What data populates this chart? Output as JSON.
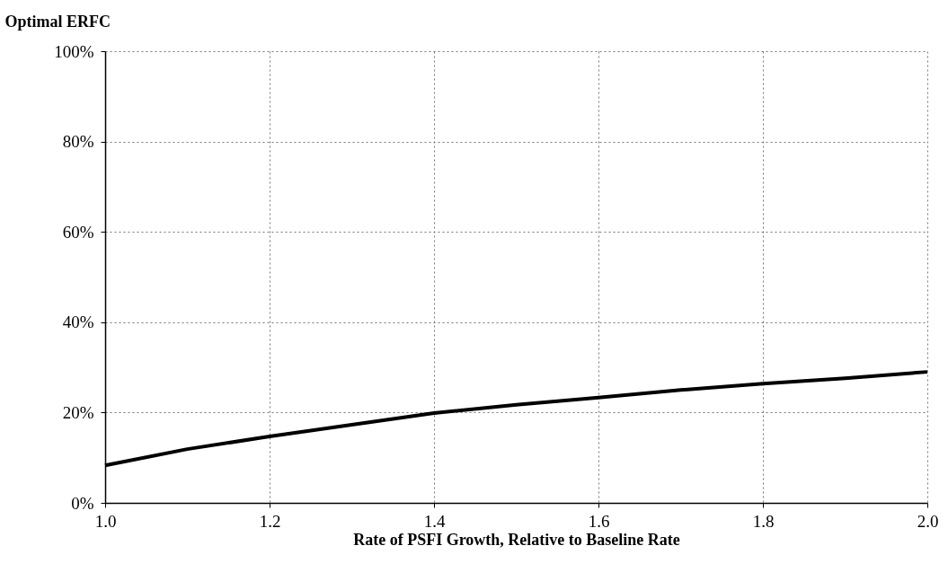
{
  "chart_data": {
    "type": "line",
    "xlabel": "Rate of PSFI Growth, Relative to Baseline Rate",
    "ylabel": "Optimal ERFC",
    "x": [
      1.0,
      1.1,
      1.2,
      1.3,
      1.4,
      1.5,
      1.6,
      1.7,
      1.8,
      1.9,
      2.0
    ],
    "series": [
      {
        "color": "#000000",
        "values": [
          8.3,
          11.9,
          14.7,
          17.3,
          19.9,
          21.7,
          23.3,
          25.0,
          26.4,
          27.6,
          29.0
        ]
      }
    ],
    "xlim": [
      1.0,
      2.0
    ],
    "xticks": [
      {
        "value": 1.0,
        "label": "1.0"
      },
      1.2,
      1.4,
      1.6,
      1.8,
      {
        "value": 2.0,
        "label": "2.0"
      }
    ],
    "ylim": [
      0,
      100
    ],
    "yticks": [
      {
        "value": 0,
        "label": "0%"
      },
      {
        "value": 20,
        "label": "20%"
      },
      {
        "value": 40,
        "label": "40%"
      },
      {
        "value": 60,
        "label": "60%"
      },
      {
        "value": 80,
        "label": "80%"
      },
      {
        "value": 100,
        "label": "100%"
      }
    ],
    "grid": true,
    "marker": "none",
    "line_style": "solid"
  }
}
